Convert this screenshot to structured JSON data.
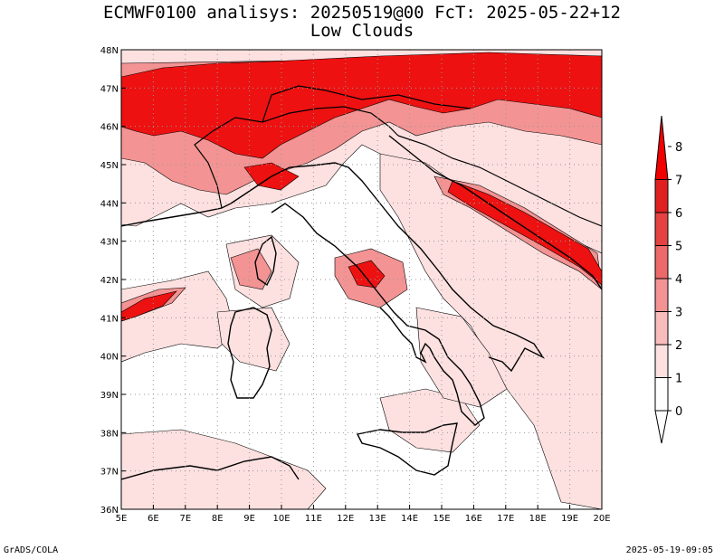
{
  "title": {
    "line1": "ECMWF0100 analisys: 20250519@00 FcT: 2025-05-22+12",
    "line2": "Low Clouds"
  },
  "map": {
    "lon_labels": [
      "5E",
      "6E",
      "7E",
      "8E",
      "9E",
      "10E",
      "11E",
      "12E",
      "13E",
      "14E",
      "15E",
      "16E",
      "17E",
      "18E",
      "19E",
      "20E"
    ],
    "lat_labels": [
      "48N",
      "47N",
      "46N",
      "45N",
      "44N",
      "43N",
      "42N",
      "41N",
      "40N",
      "39N",
      "38N",
      "37N",
      "36N"
    ],
    "lon_range": [
      5,
      20
    ],
    "lat_range": [
      36,
      48
    ],
    "grid": "dotted"
  },
  "colorbar": {
    "labels": [
      "0",
      "1",
      "2",
      "3",
      "4",
      "5",
      "6",
      "7",
      "8"
    ],
    "colors": [
      "#ffffff",
      "#fde0e0",
      "#f9bcbc",
      "#f39393",
      "#ec6a6a",
      "#e54242",
      "#e02020",
      "#f00000"
    ]
  },
  "colors": {
    "light": "#fde0e0",
    "mid": "#f39393",
    "dark": "#ec4040",
    "max": "#ee1111"
  },
  "footer": {
    "left": "GrADS/COLA",
    "right": "2025-05-19-09:05"
  }
}
